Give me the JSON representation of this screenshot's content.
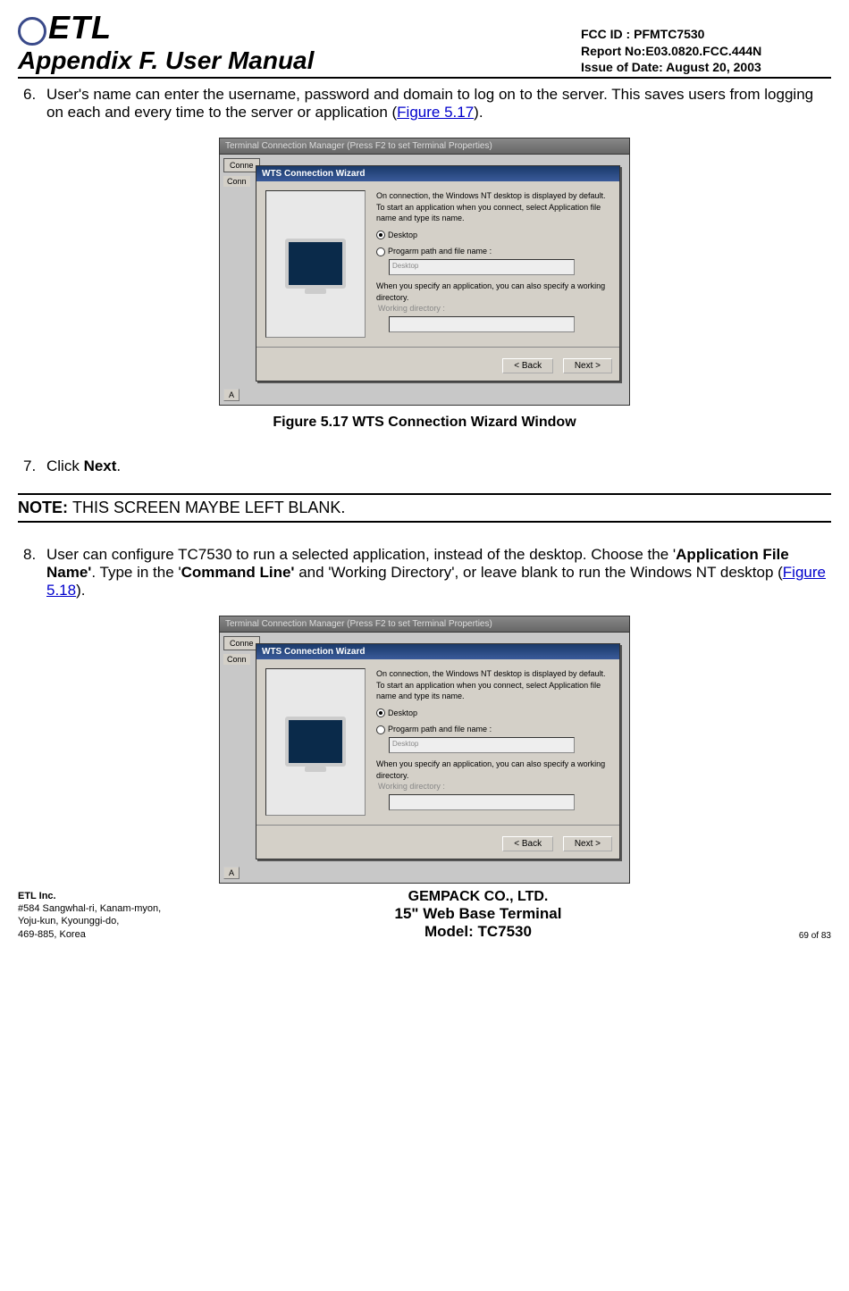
{
  "header": {
    "logo_text": "ETL",
    "appendix": "Appendix F. User Manual",
    "fcc": "FCC ID : PFMTC7530",
    "report": "Report No:E03.0820.FCC.444N",
    "issue": "Issue of Date:  August 20, 2003"
  },
  "step6": {
    "num": "6.",
    "text_a": "User's name can enter the username, password and domain to log on to the server. This saves users from logging on each and every time to the server or application (",
    "link": "Figure 5.17",
    "text_b": ")."
  },
  "screenshot": {
    "tcm_title": "Terminal Connection Manager  (Press F2 to set Terminal Properties)",
    "tab": "Conne",
    "row": "Conn",
    "wiz_title": "WTS Connection Wizard",
    "body_line1": "On connection, the Windows NT desktop is displayed by default.",
    "body_line2": "To start an application when you connect, select Application file name and type its name.",
    "radio1": "Desktop",
    "radio2": "Progarm path and file name :",
    "textbox1": "Desktop",
    "body_line3": "When you specify an application, you can also specify a working directory.",
    "grey_label": "Working directory :",
    "back": "< Back",
    "next": "Next >",
    "letter": "A"
  },
  "fig517_caption": "Figure 5.17    WTS Connection Wizard Window",
  "step7": {
    "num": "7.",
    "text_a": "Click ",
    "bold": "Next",
    "text_b": "."
  },
  "note": {
    "label": "NOTE: ",
    "text": "THIS SCREEN MAYBE LEFT BLANK."
  },
  "step8": {
    "num": "8.",
    "text_a": "User can configure TC7530 to run a selected application, instead of the desktop. Choose the '",
    "bold1": "Application File Name'",
    "text_b": ".  Type in the '",
    "bold2": "Command Line'",
    "text_c": " and 'Working Directory', or leave blank to run the Windows NT desktop (",
    "link": "Figure 5.18",
    "text_d": ")."
  },
  "footer": {
    "company_bold": "ETL Inc.",
    "addr1": "#584 Sangwhal-ri, Kanam-myon,",
    "addr2": "Yoju-kun, Kyounggi-do,",
    "addr3": "469-885, Korea",
    "center1": "GEMPACK CO., LTD.",
    "center2": "15\" Web Base Terminal",
    "center3": "Model: TC7530",
    "page": "69 of 83"
  }
}
